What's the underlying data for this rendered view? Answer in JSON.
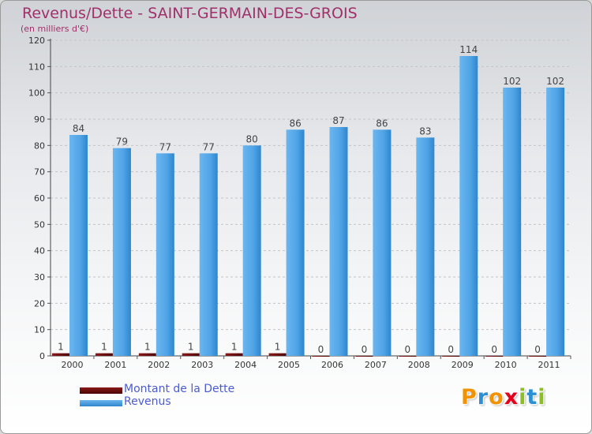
{
  "header": {
    "title": "Revenus/Dette - SAINT-GERMAIN-DES-GROIS",
    "subtitle": "(en milliers d'€)"
  },
  "legend": {
    "items": [
      {
        "label": "Montant de la Dette",
        "color": "#6b0a0a"
      },
      {
        "label": "Revenus",
        "color": "#4fa3e6"
      }
    ]
  },
  "logo": {
    "text": "Proxiti",
    "letters": [
      {
        "ch": "P",
        "color": "#f39200"
      },
      {
        "ch": "r",
        "color": "#2c8fd4"
      },
      {
        "ch": "o",
        "color": "#f39200"
      },
      {
        "ch": "x",
        "color": "#e2001a"
      },
      {
        "ch": "i",
        "color": "#8cbf26"
      },
      {
        "ch": "t",
        "color": "#2c8fd4"
      },
      {
        "ch": "i",
        "color": "#8cbf26"
      }
    ]
  },
  "chart_data": {
    "type": "bar",
    "categories": [
      "2000",
      "2001",
      "2002",
      "2003",
      "2004",
      "2005",
      "2006",
      "2007",
      "2008",
      "2009",
      "2010",
      "2011"
    ],
    "series": [
      {
        "name": "Montant de la Dette",
        "values": [
          1,
          1,
          1,
          1,
          1,
          1,
          0,
          0,
          0,
          0,
          0,
          0
        ],
        "color": "#6b0a0a"
      },
      {
        "name": "Revenus",
        "values": [
          84,
          79,
          77,
          77,
          80,
          86,
          87,
          86,
          83,
          114,
          102,
          102
        ],
        "color": "#4fa3e6"
      }
    ],
    "yticks": [
      0,
      10,
      20,
      30,
      40,
      50,
      60,
      70,
      80,
      90,
      100,
      110,
      120
    ],
    "ylim": [
      0,
      120
    ],
    "grid": true,
    "legend_position": "bottom-left",
    "title": "Revenus/Dette - SAINT-GERMAIN-DES-GROIS",
    "xlabel": "",
    "ylabel": ""
  }
}
